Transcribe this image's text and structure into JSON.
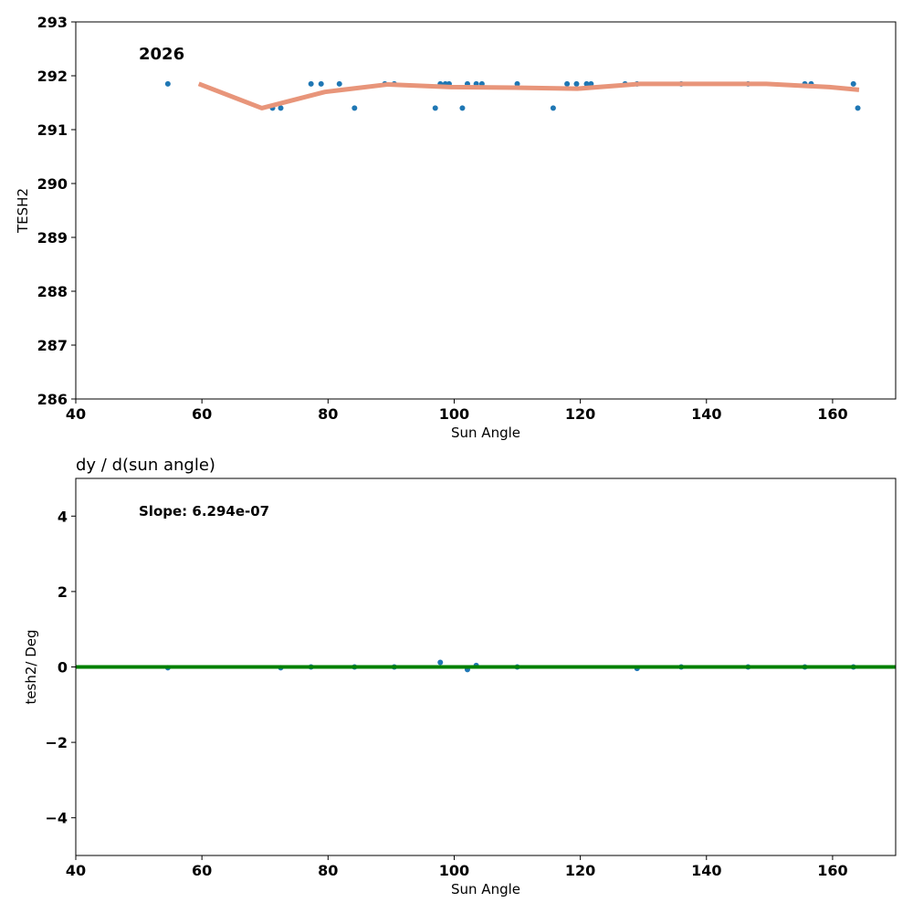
{
  "chart_data": [
    {
      "type": "scatter",
      "title": "",
      "xlabel": "Sun Angle",
      "ylabel": "TESH2",
      "xlim": [
        40,
        170
      ],
      "ylim": [
        286,
        293
      ],
      "xticks": [
        40,
        60,
        80,
        100,
        120,
        140,
        160
      ],
      "yticks": [
        286,
        287,
        288,
        289,
        290,
        291,
        292,
        293
      ],
      "annotation": "2026",
      "grid": false,
      "colors": {
        "points": "#1f77b4",
        "trend": "#e8957a"
      },
      "points": {
        "x": [
          54.6,
          71.2,
          72.5,
          77.3,
          78.9,
          81.8,
          84.2,
          89,
          90.5,
          97,
          97.8,
          98.6,
          99.2,
          101.3,
          102.1,
          103.5,
          104.4,
          110,
          115.7,
          117.9,
          119.4,
          121,
          121.7,
          127.1,
          129,
          136,
          146.6,
          155.6,
          156.6,
          163.3,
          164
        ],
        "y": [
          291.85,
          291.4,
          291.4,
          291.85,
          291.85,
          291.85,
          291.4,
          291.85,
          291.85,
          291.4,
          291.85,
          291.85,
          291.85,
          291.4,
          291.85,
          291.85,
          291.85,
          291.85,
          291.4,
          291.85,
          291.85,
          291.85,
          291.85,
          291.85,
          291.85,
          291.85,
          291.85,
          291.85,
          291.85,
          291.85,
          291.4
        ]
      },
      "trend": {
        "x": [
          59.5,
          69.5,
          79.5,
          89.5,
          99.5,
          109.5,
          119.5,
          129.5,
          139.5,
          149.5,
          159.5,
          164.2
        ],
        "y": [
          291.85,
          291.4,
          291.7,
          291.84,
          291.79,
          291.78,
          291.76,
          291.85,
          291.85,
          291.85,
          291.79,
          291.74
        ]
      }
    },
    {
      "type": "scatter",
      "title": "dy / d(sun angle)",
      "xlabel": "Sun Angle",
      "ylabel": "tesh2/ Deg",
      "xlim": [
        40,
        170
      ],
      "ylim": [
        -5,
        5
      ],
      "xticks": [
        40,
        60,
        80,
        100,
        120,
        140,
        160
      ],
      "yticks": [
        -4,
        -2,
        0,
        2,
        4
      ],
      "ytick_labels": [
        "−4",
        "−2",
        "0",
        "2",
        "4"
      ],
      "annotation": "Slope: 6.294e-07",
      "grid": false,
      "colors": {
        "points": "#1f77b4",
        "fit": "#008000"
      },
      "points": {
        "x": [
          54.6,
          72.5,
          77.3,
          84.2,
          90.5,
          97.8,
          102.1,
          103.5,
          110,
          129,
          136,
          146.6,
          155.6,
          163.3
        ],
        "y": [
          -0.02,
          -0.02,
          0.0,
          0.0,
          0.0,
          0.12,
          -0.07,
          0.04,
          0.0,
          -0.04,
          0.0,
          0.0,
          0.0,
          0.0
        ]
      },
      "fit": {
        "x": [
          40,
          170
        ],
        "y": [
          0.0,
          0.0
        ]
      }
    }
  ]
}
